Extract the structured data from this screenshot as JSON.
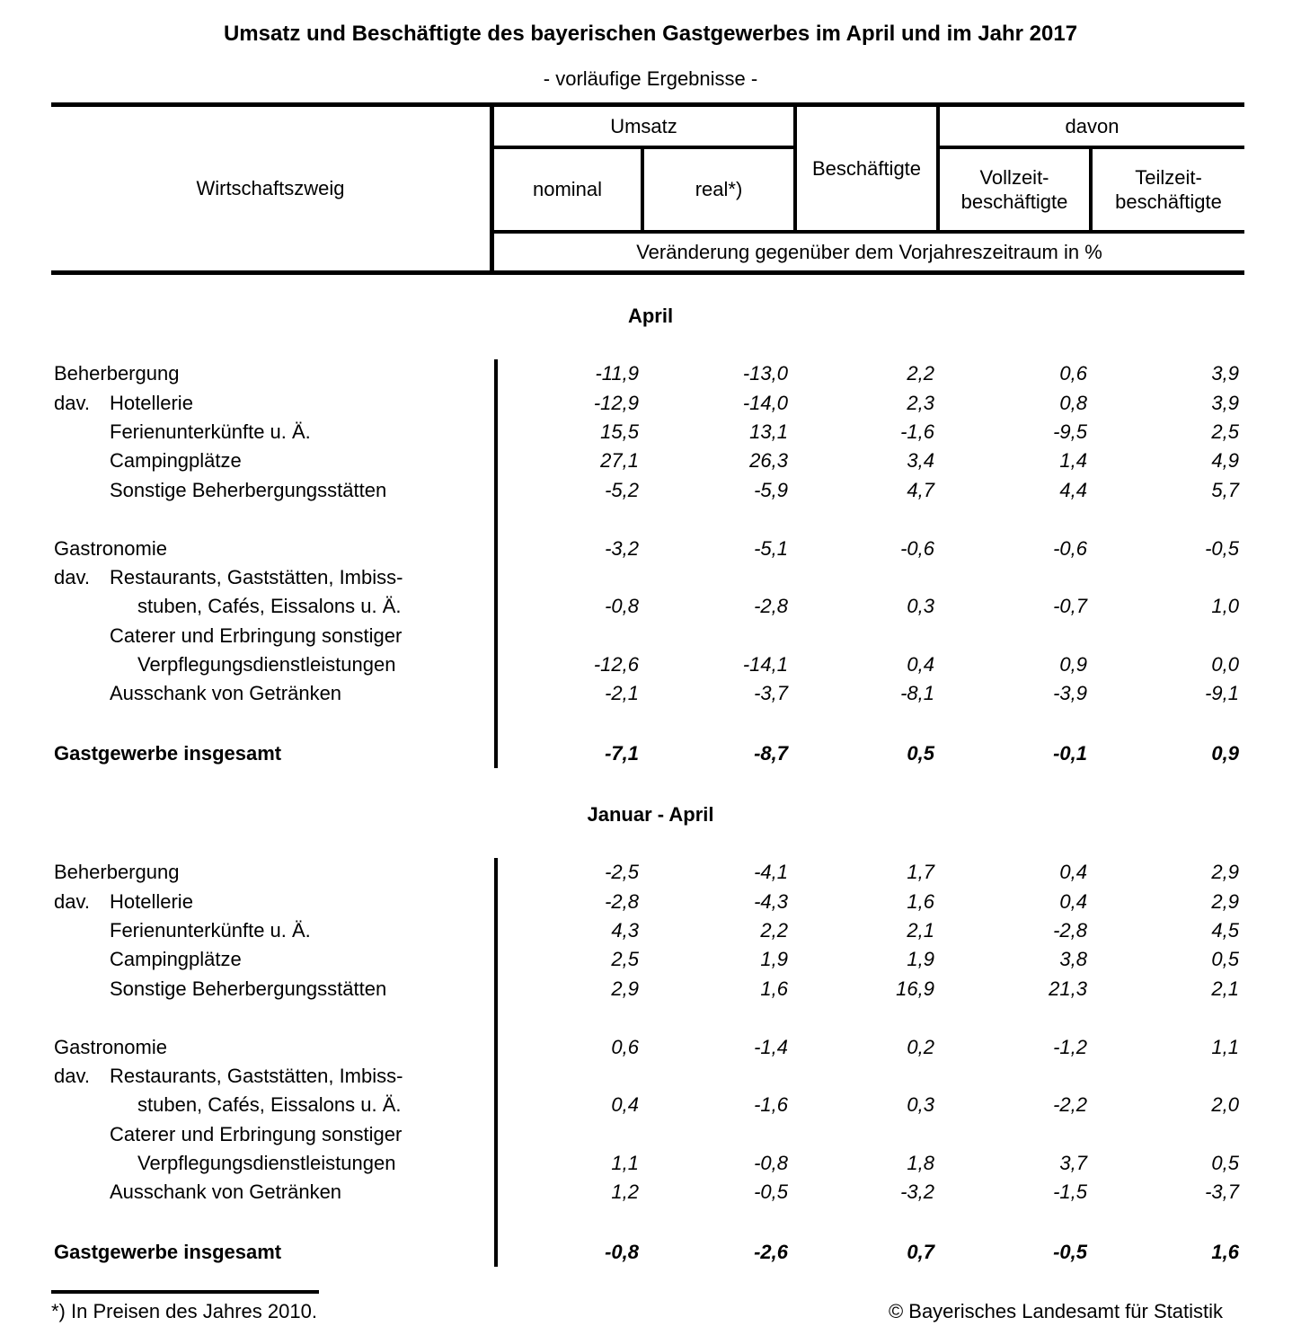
{
  "title": "Umsatz und Beschäftigte des bayerischen Gastgewerbes im April und im Jahr 2017",
  "subtitle": "- vorläufige Ergebnisse -",
  "header": {
    "wirtschaftszweig": "Wirtschaftszweig",
    "umsatz_group": "Umsatz",
    "nominal": "nominal",
    "real": "real*)",
    "beschaeftigte": "Beschäftigte",
    "davon_group": "davon",
    "vollzeit_line1": "Vollzeit-",
    "vollzeit_line2": "beschäftigte",
    "teilzeit_line1": "Teilzeit-",
    "teilzeit_line2": "beschäftigte",
    "unit_row": "Veränderung gegenüber dem Vorjahreszeitraum in %"
  },
  "sections": [
    {
      "heading": "April",
      "rows": [
        {
          "type": "data",
          "prefix": "",
          "indent": 0,
          "label": "Beherbergung",
          "values": [
            "-11,9",
            "-13,0",
            "2,2",
            "0,6",
            "3,9"
          ]
        },
        {
          "type": "data",
          "prefix": "dav.",
          "indent": 1,
          "label": "Hotellerie",
          "values": [
            "-12,9",
            "-14,0",
            "2,3",
            "0,8",
            "3,9"
          ]
        },
        {
          "type": "data",
          "prefix": "",
          "indent": 1,
          "label": "Ferienunterkünfte u. Ä.",
          "values": [
            "15,5",
            "13,1",
            "-1,6",
            "-9,5",
            "2,5"
          ]
        },
        {
          "type": "data",
          "prefix": "",
          "indent": 1,
          "label": "Campingplätze",
          "values": [
            "27,1",
            "26,3",
            "3,4",
            "1,4",
            "4,9"
          ]
        },
        {
          "type": "data",
          "prefix": "",
          "indent": 1,
          "label": "Sonstige Beherbergungsstätten",
          "values": [
            "-5,2",
            "-5,9",
            "4,7",
            "4,4",
            "5,7"
          ]
        },
        {
          "type": "spacer"
        },
        {
          "type": "data",
          "prefix": "",
          "indent": 0,
          "label": "Gastronomie",
          "values": [
            "-3,2",
            "-5,1",
            "-0,6",
            "-0,6",
            "-0,5"
          ]
        },
        {
          "type": "data",
          "prefix": "dav.",
          "indent": 1,
          "label": "Restaurants, Gaststätten, Imbiss-",
          "values": null
        },
        {
          "type": "data",
          "prefix": "",
          "indent": 2,
          "label": "stuben, Cafés, Eissalons u. Ä.",
          "values": [
            "-0,8",
            "-2,8",
            "0,3",
            "-0,7",
            "1,0"
          ]
        },
        {
          "type": "data",
          "prefix": "",
          "indent": 1,
          "label": "Caterer und Erbringung sonstiger",
          "values": null
        },
        {
          "type": "data",
          "prefix": "",
          "indent": 2,
          "label": "Verpflegungsdienstleistungen",
          "values": [
            "-12,6",
            "-14,1",
            "0,4",
            "0,9",
            "0,0"
          ]
        },
        {
          "type": "data",
          "prefix": "",
          "indent": 1,
          "label": "Ausschank von Getränken",
          "values": [
            "-2,1",
            "-3,7",
            "-8,1",
            "-3,9",
            "-9,1"
          ]
        },
        {
          "type": "total",
          "prefix": "",
          "indent": 0,
          "label": "Gastgewerbe insgesamt",
          "values": [
            "-7,1",
            "-8,7",
            "0,5",
            "-0,1",
            "0,9"
          ]
        }
      ]
    },
    {
      "heading": "Januar - April",
      "rows": [
        {
          "type": "data",
          "prefix": "",
          "indent": 0,
          "label": "Beherbergung",
          "values": [
            "-2,5",
            "-4,1",
            "1,7",
            "0,4",
            "2,9"
          ]
        },
        {
          "type": "data",
          "prefix": "dav.",
          "indent": 1,
          "label": "Hotellerie",
          "values": [
            "-2,8",
            "-4,3",
            "1,6",
            "0,4",
            "2,9"
          ]
        },
        {
          "type": "data",
          "prefix": "",
          "indent": 1,
          "label": "Ferienunterkünfte u. Ä.",
          "values": [
            "4,3",
            "2,2",
            "2,1",
            "-2,8",
            "4,5"
          ]
        },
        {
          "type": "data",
          "prefix": "",
          "indent": 1,
          "label": "Campingplätze",
          "values": [
            "2,5",
            "1,9",
            "1,9",
            "3,8",
            "0,5"
          ]
        },
        {
          "type": "data",
          "prefix": "",
          "indent": 1,
          "label": "Sonstige Beherbergungsstätten",
          "values": [
            "2,9",
            "1,6",
            "16,9",
            "21,3",
            "2,1"
          ]
        },
        {
          "type": "spacer"
        },
        {
          "type": "data",
          "prefix": "",
          "indent": 0,
          "label": "Gastronomie",
          "values": [
            "0,6",
            "-1,4",
            "0,2",
            "-1,2",
            "1,1"
          ]
        },
        {
          "type": "data",
          "prefix": "dav.",
          "indent": 1,
          "label": "Restaurants, Gaststätten, Imbiss-",
          "values": null
        },
        {
          "type": "data",
          "prefix": "",
          "indent": 2,
          "label": "stuben, Cafés, Eissalons u. Ä.",
          "values": [
            "0,4",
            "-1,6",
            "0,3",
            "-2,2",
            "2,0"
          ]
        },
        {
          "type": "data",
          "prefix": "",
          "indent": 1,
          "label": "Caterer und Erbringung sonstiger",
          "values": null
        },
        {
          "type": "data",
          "prefix": "",
          "indent": 2,
          "label": "Verpflegungsdienstleistungen",
          "values": [
            "1,1",
            "-0,8",
            "1,8",
            "3,7",
            "0,5"
          ]
        },
        {
          "type": "data",
          "prefix": "",
          "indent": 1,
          "label": "Ausschank von Getränken",
          "values": [
            "1,2",
            "-0,5",
            "-3,2",
            "-1,5",
            "-3,7"
          ]
        },
        {
          "type": "total",
          "prefix": "",
          "indent": 0,
          "label": "Gastgewerbe insgesamt",
          "values": [
            "-0,8",
            "-2,6",
            "0,7",
            "-0,5",
            "1,6"
          ]
        }
      ]
    }
  ],
  "footer": {
    "footnote": "*) In Preisen des Jahres 2010.",
    "copyright": "© Bayerisches Landesamt für Statistik"
  }
}
